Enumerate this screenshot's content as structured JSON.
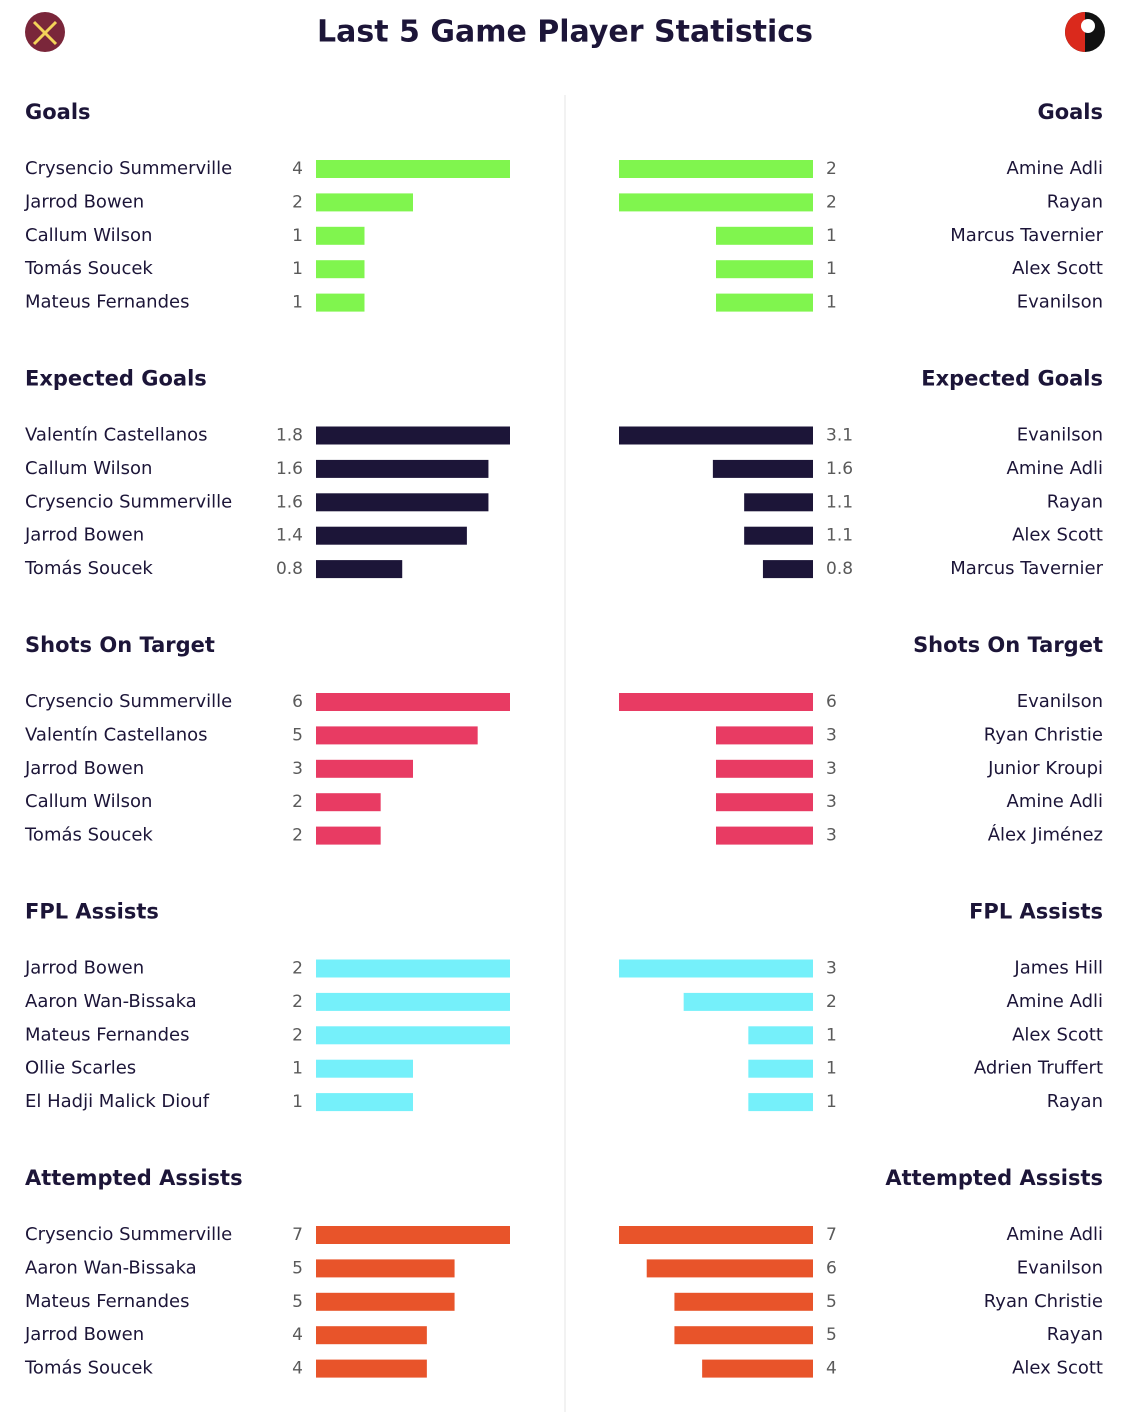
{
  "title": "Last 5 Game Player Statistics",
  "chart_data": [
    {
      "type": "bar",
      "side": "left",
      "title": "Goals",
      "color": "#80f54e",
      "categories": [
        "Crysencio Summerville",
        "Jarrod Bowen",
        "Callum Wilson",
        "Tomás Soucek",
        "Mateus Fernandes"
      ],
      "values": [
        4,
        2,
        1,
        1,
        1
      ]
    },
    {
      "type": "bar",
      "side": "right",
      "title": "Goals",
      "color": "#80f54e",
      "categories": [
        "Amine Adli",
        "Rayan",
        "Marcus Tavernier",
        "Alex Scott",
        "Evanilson"
      ],
      "values": [
        2,
        2,
        1,
        1,
        1
      ]
    },
    {
      "type": "bar",
      "side": "left",
      "title": "Expected Goals",
      "color": "#1c1538",
      "categories": [
        "Valentín Castellanos",
        "Callum Wilson",
        "Crysencio Summerville",
        "Jarrod Bowen",
        "Tomás Soucek"
      ],
      "values": [
        1.8,
        1.6,
        1.6,
        1.4,
        0.8
      ]
    },
    {
      "type": "bar",
      "side": "right",
      "title": "Expected Goals",
      "color": "#1c1538",
      "categories": [
        "Evanilson",
        "Amine Adli",
        "Rayan",
        "Alex Scott",
        "Marcus Tavernier"
      ],
      "values": [
        3.1,
        1.6,
        1.1,
        1.1,
        0.8
      ]
    },
    {
      "type": "bar",
      "side": "left",
      "title": "Shots On Target",
      "color": "#e83b63",
      "categories": [
        "Crysencio Summerville",
        "Valentín Castellanos",
        "Jarrod Bowen",
        "Callum Wilson",
        "Tomás Soucek"
      ],
      "values": [
        6,
        5,
        3,
        2,
        2
      ]
    },
    {
      "type": "bar",
      "side": "right",
      "title": "Shots On Target",
      "color": "#e83b63",
      "categories": [
        "Evanilson",
        "Ryan Christie",
        "Junior Kroupi",
        "Amine Adli",
        "Álex Jiménez"
      ],
      "values": [
        6,
        3,
        3,
        3,
        3
      ]
    },
    {
      "type": "bar",
      "side": "left",
      "title": "FPL Assists",
      "color": "#75f0fa",
      "categories": [
        "Jarrod Bowen",
        "Aaron Wan-Bissaka",
        "Mateus Fernandes",
        "Ollie Scarles",
        "El Hadji Malick Diouf"
      ],
      "values": [
        2,
        2,
        2,
        1,
        1
      ]
    },
    {
      "type": "bar",
      "side": "right",
      "title": "FPL Assists",
      "color": "#75f0fa",
      "categories": [
        "James Hill",
        "Amine Adli",
        "Alex Scott",
        "Adrien Truffert",
        "Rayan"
      ],
      "values": [
        3,
        2,
        1,
        1,
        1
      ]
    },
    {
      "type": "bar",
      "side": "left",
      "title": "Attempted Assists",
      "color": "#e8542a",
      "categories": [
        "Crysencio Summerville",
        "Aaron Wan-Bissaka",
        "Mateus Fernandes",
        "Jarrod Bowen",
        "Tomás Soucek"
      ],
      "values": [
        7,
        5,
        5,
        4,
        4
      ]
    },
    {
      "type": "bar",
      "side": "right",
      "title": "Attempted Assists",
      "color": "#e8542a",
      "categories": [
        "Amine Adli",
        "Evanilson",
        "Ryan Christie",
        "Rayan",
        "Alex Scott"
      ],
      "values": [
        7,
        6,
        5,
        5,
        4
      ]
    }
  ]
}
